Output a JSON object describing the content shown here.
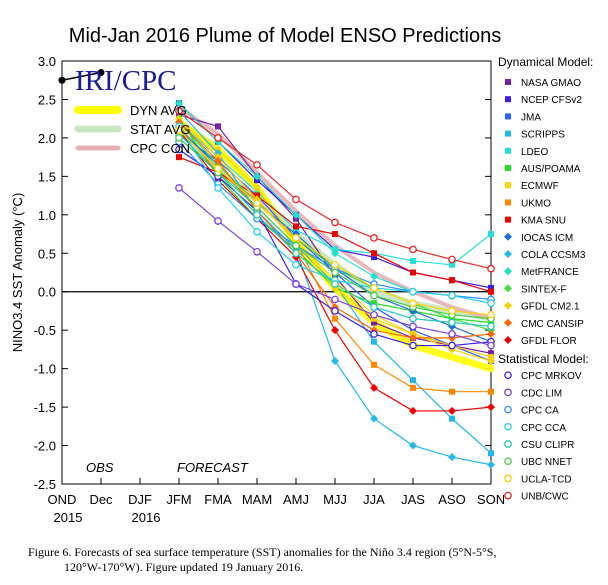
{
  "chart_data": {
    "type": "line",
    "title": "Mid-Jan 2016 Plume of Model ENSO Predictions",
    "ylabel": "NINO3.4 SST Anomaly (°C)",
    "xlabel": "",
    "ylim": [
      -2.5,
      3.0
    ],
    "yticks": [
      "3.0",
      "2.5",
      "2.0",
      "1.5",
      "1.0",
      "0.5",
      "0.0",
      "-0.5",
      "-1.0",
      "-1.5",
      "-2.0",
      "-2.5"
    ],
    "ytick_values": [
      3.0,
      2.5,
      2.0,
      1.5,
      1.0,
      0.5,
      0.0,
      -0.5,
      -1.0,
      -1.5,
      -2.0,
      -2.5
    ],
    "x_categories": [
      "OND",
      "Dec",
      "DJF",
      "JFM",
      "FMA",
      "MAM",
      "AMJ",
      "MJJ",
      "JJA",
      "JAS",
      "ASO",
      "SON"
    ],
    "x_year_labels": [
      {
        "text": "2015",
        "at": "OND"
      },
      {
        "text": "2016",
        "at": "DJF"
      }
    ],
    "zero_line": true,
    "region_labels": {
      "obs": "OBS",
      "forecast": "FORECAST"
    },
    "brand": "IRI/CPC",
    "observed": {
      "x": [
        "OND",
        "Dec"
      ],
      "values": [
        2.75,
        2.85
      ],
      "color": "#000000"
    },
    "averages": [
      {
        "name": "DYN AVG",
        "color": "#ffff00",
        "values": [
          2.2,
          1.85,
          1.35,
          0.65,
          0.05,
          -0.4,
          -0.7,
          -0.85,
          -1.0
        ]
      },
      {
        "name": "STAT AVG",
        "color": "#c8e6c0",
        "values": [
          2.1,
          1.6,
          1.2,
          0.75,
          0.35,
          0.0,
          -0.15,
          -0.25,
          -0.35
        ]
      },
      {
        "name": "CPC CON",
        "color": "#e6b0b4",
        "values": [
          2.4,
          2.05,
          1.55,
          1.05,
          0.6,
          0.25,
          0.0,
          -0.2,
          -0.35
        ]
      }
    ],
    "legend_headers": {
      "dynamical": "Dynamical Model:",
      "statistical": "Statistical Model:"
    },
    "series_start": "JFM",
    "series": [
      {
        "name": "NASA GMAO",
        "group": "dynamical",
        "marker": "square",
        "color": "#7b1fa2",
        "values": [
          2.3,
          2.15,
          1.5,
          0.95,
          0.2,
          -0.4,
          -0.6,
          -0.7,
          -0.8
        ]
      },
      {
        "name": "NCEP CFSv2",
        "group": "dynamical",
        "marker": "square",
        "color": "#3a1fe0",
        "values": [
          2.45,
          1.95,
          1.45,
          1.0,
          0.55,
          0.45,
          0.25,
          0.15,
          0.05
        ]
      },
      {
        "name": "JMA",
        "group": "dynamical",
        "marker": "square",
        "color": "#2f5fff",
        "values": [
          2.05,
          1.7,
          1.25,
          0.7,
          0.25,
          -0.2,
          -0.5,
          -0.7,
          -0.9
        ]
      },
      {
        "name": "SCRIPPS",
        "group": "dynamical",
        "marker": "square",
        "color": "#22b8ee",
        "values": [
          2.15,
          1.6,
          1.1,
          0.6,
          0.1,
          -0.65,
          -1.15,
          -1.65,
          -2.1
        ]
      },
      {
        "name": "LDEO",
        "group": "dynamical",
        "marker": "square",
        "color": "#22e0d8",
        "values": [
          2.2,
          1.75,
          1.3,
          0.8,
          0.55,
          0.5,
          0.4,
          0.35,
          0.75
        ]
      },
      {
        "name": "AUS/POAMA",
        "group": "dynamical",
        "marker": "square",
        "color": "#22dd22",
        "values": [
          2.25,
          1.5,
          0.95,
          0.55,
          0.05,
          -0.15,
          -0.25,
          -0.35,
          -0.4
        ]
      },
      {
        "name": "ECMWF",
        "group": "dynamical",
        "marker": "square",
        "color": "#ffd200",
        "values": [
          2.2,
          1.85,
          1.35,
          0.65,
          0.05,
          -0.35,
          -0.55,
          -0.7,
          -0.85
        ]
      },
      {
        "name": "UKMO",
        "group": "dynamical",
        "marker": "square",
        "color": "#ff8800",
        "values": [
          2.15,
          1.55,
          1.2,
          0.65,
          -0.35,
          -0.95,
          -1.25,
          -1.3,
          -1.3
        ]
      },
      {
        "name": "KMA SNU",
        "group": "dynamical",
        "marker": "square",
        "color": "#ee0000",
        "values": [
          1.75,
          1.55,
          1.25,
          0.85,
          0.75,
          0.5,
          0.25,
          0.15,
          0.0
        ]
      },
      {
        "name": "IOCAS ICM",
        "group": "dynamical",
        "marker": "diamond",
        "color": "#1f6fe0",
        "values": [
          2.1,
          1.65,
          1.15,
          0.75,
          0.3,
          -0.05,
          -0.25,
          -0.45,
          -0.65
        ]
      },
      {
        "name": "COLA CCSM3",
        "group": "dynamical",
        "marker": "diamond",
        "color": "#22b8ee",
        "values": [
          2.35,
          1.8,
          1.05,
          0.55,
          -0.9,
          -1.65,
          -2.0,
          -2.15,
          -2.25
        ]
      },
      {
        "name": "MetFRANCE",
        "group": "dynamical",
        "marker": "diamond",
        "color": "#22e0c8",
        "values": [
          2.45,
          1.95,
          1.5,
          1.0,
          0.5,
          0.2,
          0.0,
          -0.05,
          -0.1
        ]
      },
      {
        "name": "SINTEX-F",
        "group": "dynamical",
        "marker": "diamond",
        "color": "#44dd44",
        "values": [
          2.2,
          1.65,
          1.15,
          0.7,
          0.3,
          0.05,
          -0.15,
          -0.35,
          -0.5
        ]
      },
      {
        "name": "GFDL CM2.1",
        "group": "dynamical",
        "marker": "diamond",
        "color": "#ffd000",
        "values": [
          2.25,
          1.75,
          1.2,
          0.65,
          0.15,
          -0.3,
          -0.55,
          -0.75,
          -0.9
        ]
      },
      {
        "name": "CMC CANSIP",
        "group": "dynamical",
        "marker": "diamond",
        "color": "#ff6600",
        "values": [
          2.2,
          1.7,
          1.05,
          0.5,
          -0.2,
          -0.5,
          -0.6,
          -0.6,
          -0.55
        ]
      },
      {
        "name": "GFDL FLOR",
        "group": "dynamical",
        "marker": "diamond",
        "color": "#ee0000",
        "values": [
          2.1,
          1.45,
          0.95,
          0.45,
          -0.5,
          -1.25,
          -1.55,
          -1.55,
          -1.5
        ]
      },
      {
        "name": "CPC MRKOV",
        "group": "statistical",
        "marker": "circle",
        "color": "#3a1fe0",
        "values": [
          1.85,
          1.5,
          1.05,
          0.1,
          -0.25,
          -0.55,
          -0.7,
          -0.7,
          -0.65
        ]
      },
      {
        "name": "CDC LIM",
        "group": "statistical",
        "marker": "circle",
        "color": "#7b3fe0",
        "values": [
          1.35,
          0.92,
          0.52,
          0.1,
          -0.1,
          -0.3,
          -0.45,
          -0.55,
          -0.7
        ]
      },
      {
        "name": "CPC CA",
        "group": "statistical",
        "marker": "circle",
        "color": "#2f8fff",
        "values": [
          1.95,
          1.4,
          0.95,
          0.6,
          0.3,
          0.1,
          0.0,
          -0.05,
          -0.1
        ]
      },
      {
        "name": "CPC CCA",
        "group": "statistical",
        "marker": "circle",
        "color": "#22d0ee",
        "values": [
          2.15,
          1.35,
          0.78,
          0.35,
          0.15,
          0.05,
          0.0,
          -0.05,
          -0.15
        ]
      },
      {
        "name": "CSU CLIPR",
        "group": "statistical",
        "marker": "circle",
        "color": "#22c8b8",
        "values": [
          2.05,
          1.55,
          1.0,
          0.5,
          0.1,
          -0.2,
          -0.35,
          -0.4,
          -0.45
        ]
      },
      {
        "name": "UBC NNET",
        "group": "statistical",
        "marker": "circle",
        "color": "#44cc44",
        "values": [
          2.0,
          1.55,
          1.1,
          0.6,
          0.25,
          -0.05,
          -0.2,
          -0.3,
          -0.35
        ]
      },
      {
        "name": "UCLA-TCD",
        "group": "statistical",
        "marker": "circle",
        "color": "#ffd000",
        "values": [
          2.1,
          1.6,
          1.15,
          0.7,
          0.35,
          0.05,
          -0.15,
          -0.25,
          -0.3
        ]
      },
      {
        "name": "UNB/CWC",
        "group": "statistical",
        "marker": "circle",
        "color": "#ee2222",
        "values": [
          2.35,
          2.0,
          1.65,
          1.2,
          0.9,
          0.7,
          0.55,
          0.42,
          0.3
        ]
      }
    ]
  },
  "caption": {
    "line1": "Figure 6. Forecasts of sea surface temperature (SST) anomalies for the Niño 3.4 region (5°N-5°S,",
    "line2": "120°W-170°W). Figure updated 19 January 2016."
  }
}
